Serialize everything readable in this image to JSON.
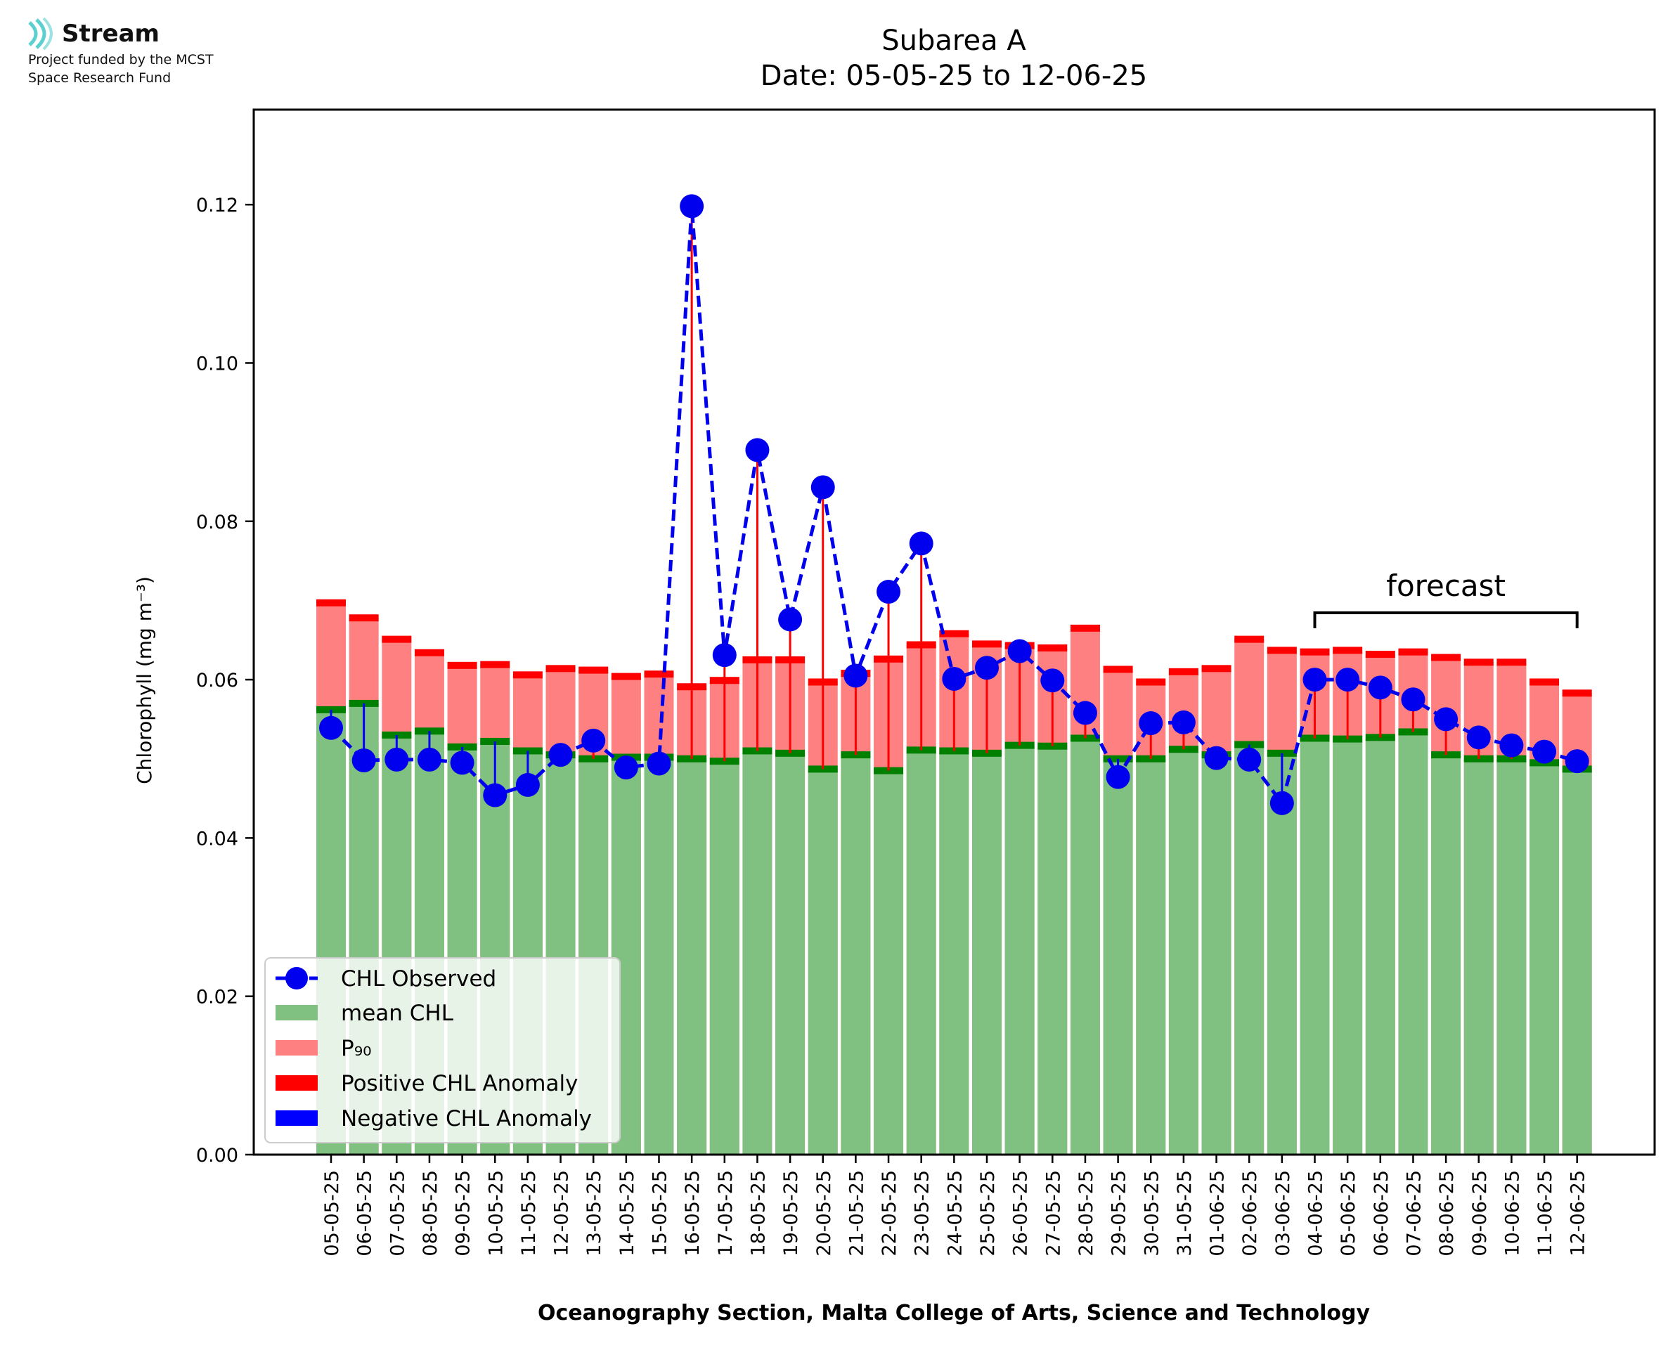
{
  "logo": {
    "name": "Stream",
    "line1": "Project funded by the MCST",
    "line2": "Space Research Fund"
  },
  "colors": {
    "mean": "#80c080",
    "mean_cap": "#008000",
    "p90": "#ff8080",
    "p90_cap": "#ff0000",
    "observed": "#0000ee",
    "anomaly_pos": "#ff0000",
    "anomaly_neg": "#0000ff"
  },
  "chart_data": {
    "type": "bar",
    "title": "Subarea A",
    "subtitle": "Date: 05-05-25 to 12-06-25",
    "xlabel": "Oceanography Section, Malta College of Arts, Science and Technology",
    "ylabel": "Chlorophyll (mg m⁻³)",
    "ylim": [
      0,
      0.132
    ],
    "yticks": [
      "0.00",
      "0.02",
      "0.04",
      "0.06",
      "0.08",
      "0.10",
      "0.12"
    ],
    "grid": false,
    "legend_position": "lower-left",
    "annotation": "forecast",
    "forecast_range": [
      "04-06-25",
      "12-06-25"
    ],
    "categories": [
      "05-05-25",
      "06-05-25",
      "07-05-25",
      "08-05-25",
      "09-05-25",
      "10-05-25",
      "11-05-25",
      "12-05-25",
      "13-05-25",
      "14-05-25",
      "15-05-25",
      "16-05-25",
      "17-05-25",
      "18-05-25",
      "19-05-25",
      "20-05-25",
      "21-05-25",
      "22-05-25",
      "23-05-25",
      "24-05-25",
      "25-05-25",
      "26-05-25",
      "27-05-25",
      "28-05-25",
      "29-05-25",
      "30-05-25",
      "31-05-25",
      "01-06-25",
      "02-06-25",
      "03-06-25",
      "04-06-25",
      "05-06-25",
      "06-06-25",
      "07-06-25",
      "08-06-25",
      "09-06-25",
      "10-06-25",
      "11-06-25",
      "12-06-25"
    ],
    "series": [
      {
        "name": "CHL Observed",
        "style": "dashed-line-markers",
        "values": [
          0.0539,
          0.0498,
          0.0499,
          0.0499,
          0.0495,
          0.0454,
          0.0467,
          0.0505,
          0.0523,
          0.0489,
          0.0494,
          0.1198,
          0.0631,
          0.089,
          0.0676,
          0.0843,
          0.0605,
          0.0711,
          0.0772,
          0.0601,
          0.0615,
          0.0636,
          0.0599,
          0.0558,
          0.0477,
          0.0545,
          0.0546,
          0.0501,
          0.0499,
          0.0444,
          0.06,
          0.06,
          0.059,
          0.0575,
          0.055,
          0.0527,
          0.0517,
          0.0509,
          0.0497
        ]
      },
      {
        "name": "mean CHL",
        "style": "bar",
        "values": [
          0.0562,
          0.057,
          0.053,
          0.0535,
          0.0515,
          0.0522,
          0.051,
          0.0505,
          0.05,
          0.0502,
          0.0502,
          0.05,
          0.0497,
          0.051,
          0.0507,
          0.0487,
          0.0505,
          0.0485,
          0.0511,
          0.051,
          0.0507,
          0.0517,
          0.0516,
          0.0526,
          0.05,
          0.05,
          0.0512,
          0.0505,
          0.0518,
          0.0507,
          0.0526,
          0.0525,
          0.0527,
          0.0534,
          0.0505,
          0.05,
          0.05,
          0.0495,
          0.0487
        ]
      },
      {
        "name": "P₉₀",
        "style": "bar",
        "values": [
          0.0697,
          0.0678,
          0.0651,
          0.0634,
          0.0618,
          0.0619,
          0.0606,
          0.0614,
          0.0612,
          0.0604,
          0.0607,
          0.0591,
          0.0599,
          0.0625,
          0.0625,
          0.0597,
          0.0608,
          0.0626,
          0.0644,
          0.0658,
          0.0645,
          0.0643,
          0.064,
          0.0665,
          0.0613,
          0.0597,
          0.061,
          0.0614,
          0.0651,
          0.0637,
          0.0635,
          0.0637,
          0.0632,
          0.0635,
          0.0628,
          0.0622,
          0.0622,
          0.0597,
          0.0583
        ]
      },
      {
        "name": "Positive CHL Anomaly",
        "style": "vline"
      },
      {
        "name": "Negative CHL Anomaly",
        "style": "vline"
      }
    ]
  }
}
